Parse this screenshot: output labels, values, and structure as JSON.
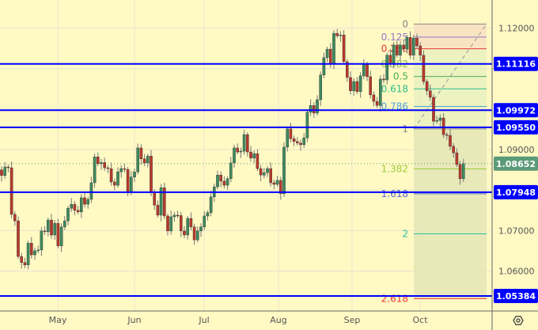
{
  "chart_data": {
    "type": "candlestick",
    "x_tick_labels": [
      "May",
      "Jun",
      "Jul",
      "Aug",
      "Sep",
      "Oct"
    ],
    "y_tick_labels": [
      "1.12000",
      "1.09000",
      "1.07000",
      "1.06000"
    ],
    "y_ticks": [
      1.12,
      1.09,
      1.07,
      1.06
    ],
    "ylim": [
      1.0485,
      1.1255
    ],
    "grid": true,
    "first_open": 1.085,
    "close": [
      1.0836,
      1.0857,
      1.0855,
      1.074,
      1.0724,
      1.0636,
      1.0621,
      1.0615,
      1.0669,
      1.064,
      1.065,
      1.0652,
      1.0699,
      1.0697,
      1.0726,
      1.0689,
      1.0718,
      1.0662,
      1.0709,
      1.0724,
      1.0755,
      1.0765,
      1.075,
      1.0746,
      1.0781,
      1.0765,
      1.0777,
      1.0818,
      1.0882,
      1.0865,
      1.0868,
      1.0855,
      1.0853,
      1.082,
      1.0812,
      1.0845,
      1.0853,
      1.0851,
      1.0796,
      1.0832,
      1.0845,
      1.0904,
      1.0877,
      1.0867,
      1.0884,
      1.0794,
      1.0763,
      1.0738,
      1.0806,
      1.0736,
      1.0699,
      1.0734,
      1.0738,
      1.0737,
      1.0699,
      1.0689,
      1.073,
      1.0709,
      1.0677,
      1.0699,
      1.0709,
      1.0736,
      1.0744,
      1.0783,
      1.0808,
      1.0837,
      1.0822,
      1.0812,
      1.0828,
      1.0867,
      1.0904,
      1.0894,
      1.0896,
      1.0937,
      1.0894,
      1.0879,
      1.089,
      1.0853,
      1.0837,
      1.0843,
      1.0853,
      1.0818,
      1.0814,
      1.0824,
      1.0791,
      1.0906,
      1.0951,
      1.0927,
      1.092,
      1.0916,
      1.0912,
      1.0929,
      1.0992,
      1.1009,
      1.099,
      1.1023,
      1.1084,
      1.1127,
      1.1148,
      1.1111,
      1.1187,
      1.1181,
      1.1183,
      1.1117,
      1.1078,
      1.1045,
      1.1068,
      1.1043,
      1.1082,
      1.1111,
      1.108,
      1.1035,
      1.1019,
      1.1009,
      1.1074,
      1.1072,
      1.1133,
      1.1113,
      1.1158,
      1.1133,
      1.1158,
      1.1148,
      1.1177,
      1.1133,
      1.1175,
      1.1156,
      1.1133,
      1.1068,
      1.1045,
      1.1029,
      1.097,
      1.0972,
      1.0978,
      1.0937,
      1.0935,
      1.0908,
      1.0892,
      1.0863,
      1.0828,
      1.0865
    ],
    "horizontal_levels": [
      {
        "value": 1.11116,
        "label": "1.11116"
      },
      {
        "value": 1.09972,
        "label": "1.09972"
      },
      {
        "value": 1.0955,
        "label": "1.09550"
      },
      {
        "value": 1.07948,
        "label": "1.07948"
      },
      {
        "value": 1.05384,
        "label": "1.05384"
      }
    ],
    "current_price": {
      "value": 1.08652,
      "label": "1.08652"
    },
    "fibonacci": {
      "start": 1.121,
      "end": 1.0951,
      "levels": [
        {
          "ratio": 0,
          "label": "0",
          "color": "#888888"
        },
        {
          "ratio": 0.125,
          "label": "0.125",
          "color": "#9575cd"
        },
        {
          "ratio": 0.236,
          "label": "0.236",
          "color": "#e53935"
        },
        {
          "ratio": 0.382,
          "label": "0.382",
          "color": "#8bc34a"
        },
        {
          "ratio": 0.5,
          "label": "0.5",
          "color": "#4caf50"
        },
        {
          "ratio": 0.618,
          "label": "0.618",
          "color": "#2dbf8c"
        },
        {
          "ratio": 0.786,
          "label": "0.786",
          "color": "#4fa3d9"
        },
        {
          "ratio": 1,
          "label": "1",
          "color": "#888888"
        },
        {
          "ratio": 1.382,
          "label": "1.382",
          "color": "#9ccc3a"
        },
        {
          "ratio": 1.618,
          "label": "1.618",
          "color": "#5b6ad0"
        },
        {
          "ratio": 2,
          "label": "2",
          "color": "#26c6a0"
        },
        {
          "ratio": 2.618,
          "label": "2.618",
          "color": "#e53935"
        }
      ]
    },
    "colors": {
      "up": "#3d8b5e",
      "down": "#b8392b",
      "level": "#0000ff",
      "current": "#5b9a78",
      "background": "#fff9c4"
    }
  },
  "icons": {
    "settings": "settings-hexagon-icon"
  }
}
